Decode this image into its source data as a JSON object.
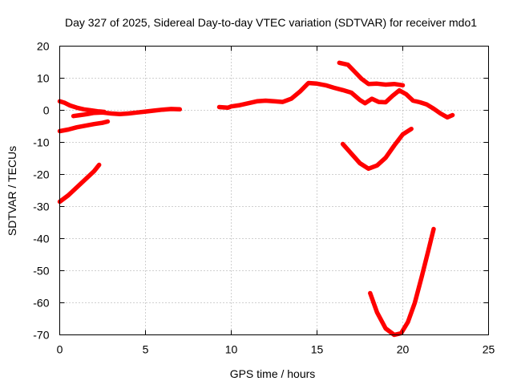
{
  "chart_data": {
    "type": "line",
    "title": "Day 327 of 2025, Sidereal Day-to-day VTEC variation (SDTVAR) for receiver mdo1",
    "xlabel": "GPS time / hours",
    "ylabel": "SDTVAR / TECUs",
    "xlim": [
      0,
      25
    ],
    "ylim": [
      -70,
      20
    ],
    "xticks": [
      "0",
      "5",
      "10",
      "15",
      "20",
      "25"
    ],
    "yticks": [
      "20",
      "10",
      "0",
      "-10",
      "-20",
      "-30",
      "-40",
      "-50",
      "-60",
      "-70"
    ],
    "grid": true,
    "color": "#ff0000",
    "series": [
      {
        "x": [
          0,
          0.3,
          0.6,
          1.0,
          1.4,
          1.8,
          2.2,
          2.6
        ],
        "y": [
          2.8,
          2.3,
          1.5,
          0.8,
          0.3,
          0,
          -0.3,
          -0.5
        ]
      },
      {
        "x": [
          0.8,
          1.2,
          1.6,
          2.0,
          2.5,
          3.0,
          3.5,
          4.0,
          4.5,
          5.0,
          5.5,
          6.0,
          6.5,
          7.0
        ],
        "y": [
          -1.8,
          -1.5,
          -1.2,
          -0.8,
          -0.7,
          -1.0,
          -1.2,
          -1.0,
          -0.7,
          -0.4,
          -0.1,
          0.2,
          0.4,
          0.3
        ]
      },
      {
        "x": [
          0,
          0.5,
          1.0,
          1.5,
          2.0,
          2.5,
          2.8
        ],
        "y": [
          -6.5,
          -6.0,
          -5.3,
          -4.8,
          -4.3,
          -3.9,
          -3.5
        ]
      },
      {
        "x": [
          0,
          0.5,
          1.0,
          1.5,
          2.0,
          2.3
        ],
        "y": [
          -28.5,
          -26.5,
          -24,
          -21.5,
          -19,
          -17
        ]
      },
      {
        "x": [
          9.3,
          9.8,
          10.0,
          10.5,
          11.0,
          11.5,
          12.0,
          12.5,
          13.0,
          13.5,
          14.0,
          14.5,
          15.0,
          15.5,
          16.0,
          16.5,
          17.0,
          17.5,
          17.8,
          18.2,
          18.6,
          19.0,
          19.4,
          19.8,
          20.2,
          20.6,
          21.0,
          21.4,
          21.8,
          22.2,
          22.6,
          22.9
        ],
        "y": [
          1.0,
          0.8,
          1.2,
          1.6,
          2.2,
          2.8,
          3.0,
          2.8,
          2.6,
          3.6,
          5.8,
          8.5,
          8.3,
          7.8,
          7.0,
          6.3,
          5.5,
          3.2,
          2.2,
          3.6,
          2.6,
          2.5,
          4.5,
          6.2,
          5.0,
          3.0,
          2.5,
          1.8,
          0.5,
          -1.0,
          -2.2,
          -1.5
        ]
      },
      {
        "x": [
          16.3,
          16.8,
          17.2,
          17.6,
          18.0,
          18.5,
          19.0,
          19.5,
          20.0
        ],
        "y": [
          14.8,
          14.2,
          12.0,
          9.8,
          8.2,
          8.3,
          8.0,
          8.2,
          7.8
        ]
      },
      {
        "x": [
          16.5,
          17.0,
          17.5,
          18.0,
          18.5,
          19.0,
          19.5,
          20.0,
          20.5
        ],
        "y": [
          -10.5,
          -13.5,
          -16.5,
          -18.2,
          -17.2,
          -14.8,
          -11.0,
          -7.5,
          -5.8
        ]
      },
      {
        "x": [
          18.1,
          18.5,
          19.0,
          19.5,
          19.9,
          20.3,
          20.7,
          21.1,
          21.5,
          21.8
        ],
        "y": [
          -57,
          -63,
          -68,
          -70,
          -69.5,
          -66,
          -60,
          -52,
          -43.5,
          -37
        ]
      }
    ]
  }
}
